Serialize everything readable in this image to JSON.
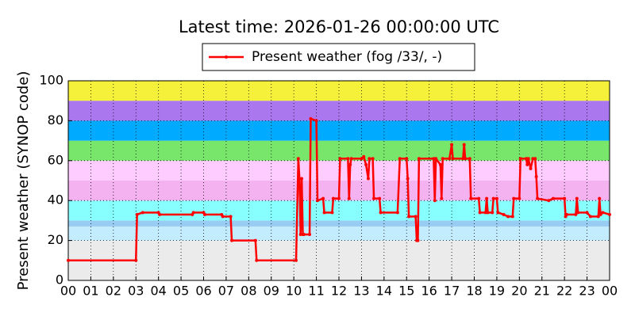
{
  "chart_data": {
    "type": "line",
    "title": "Latest time: 2026-01-26 00:00:00 UTC",
    "y_label": "Present weather (SYNOP code)",
    "xlim": [
      0,
      24
    ],
    "xticks": [
      {
        "value": 0,
        "label": "00"
      },
      {
        "value": 1,
        "label": "01"
      },
      {
        "value": 2,
        "label": "02"
      },
      {
        "value": 3,
        "label": "03"
      },
      {
        "value": 4,
        "label": "04"
      },
      {
        "value": 5,
        "label": "05"
      },
      {
        "value": 6,
        "label": "06"
      },
      {
        "value": 7,
        "label": "07"
      },
      {
        "value": 8,
        "label": "08"
      },
      {
        "value": 9,
        "label": "09"
      },
      {
        "value": 10,
        "label": "10"
      },
      {
        "value": 11,
        "label": "11"
      },
      {
        "value": 12,
        "label": "12"
      },
      {
        "value": 13,
        "label": "13"
      },
      {
        "value": 14,
        "label": "14"
      },
      {
        "value": 15,
        "label": "15"
      },
      {
        "value": 16,
        "label": "16"
      },
      {
        "value": 17,
        "label": "17"
      },
      {
        "value": 18,
        "label": "18"
      },
      {
        "value": 19,
        "label": "19"
      },
      {
        "value": 20,
        "label": "20"
      },
      {
        "value": 21,
        "label": "21"
      },
      {
        "value": 22,
        "label": "22"
      },
      {
        "value": 23,
        "label": "23"
      },
      {
        "value": 24,
        "label": "00"
      }
    ],
    "ylim": [
      0,
      100
    ],
    "yticks": [
      0,
      20,
      40,
      60,
      80,
      100
    ],
    "grid": true,
    "legend": "top-center",
    "bands": [
      {
        "from": 0,
        "to": 20,
        "color": "#ebebeb"
      },
      {
        "from": 20,
        "to": 27,
        "color": "#c4ecff"
      },
      {
        "from": 27,
        "to": 30,
        "color": "#99ccf2"
      },
      {
        "from": 30,
        "to": 40,
        "color": "#88ffff"
      },
      {
        "from": 40,
        "to": 50,
        "color": "#f4b2f0"
      },
      {
        "from": 50,
        "to": 60,
        "color": "#ffccff"
      },
      {
        "from": 60,
        "to": 70,
        "color": "#77e66b"
      },
      {
        "from": 70,
        "to": 80,
        "color": "#00aaff"
      },
      {
        "from": 80,
        "to": 90,
        "color": "#aa77ee"
      },
      {
        "from": 90,
        "to": 100,
        "color": "#f5f03a"
      }
    ],
    "series": [
      {
        "name": "Present weather (fog /33/, -)",
        "color": "#ff0000",
        "x": [
          0,
          3.0,
          3.05,
          3.3,
          4.0,
          4.05,
          5.5,
          5.55,
          6.0,
          6.05,
          6.8,
          6.85,
          7.2,
          7.25,
          8.3,
          8.35,
          10.1,
          10.2,
          10.25,
          10.3,
          10.35,
          10.4,
          10.45,
          10.7,
          10.75,
          11.0,
          11.05,
          11.3,
          11.35,
          11.7,
          11.75,
          12.0,
          12.05,
          12.4,
          12.45,
          12.5,
          12.55,
          13.0,
          13.1,
          13.2,
          13.3,
          13.35,
          13.5,
          13.55,
          13.8,
          13.85,
          14.6,
          14.7,
          15.0,
          15.05,
          15.1,
          15.4,
          15.45,
          15.5,
          15.55,
          16.2,
          16.25,
          16.3,
          16.5,
          16.55,
          16.6,
          16.9,
          17.0,
          17.05,
          17.5,
          17.55,
          17.6,
          17.8,
          17.85,
          18.2,
          18.25,
          18.5,
          18.55,
          18.6,
          18.8,
          18.85,
          19.0,
          19.05,
          19.3,
          19.5,
          19.7,
          19.75,
          20.0,
          20.05,
          20.3,
          20.35,
          20.4,
          20.5,
          20.6,
          20.7,
          20.75,
          20.8,
          21.3,
          21.5,
          22.0,
          22.05,
          22.1,
          22.5,
          22.55,
          22.6,
          23.0,
          23.15,
          23.5,
          23.55,
          23.6,
          23.7,
          24.0
        ],
        "values": [
          10,
          10,
          33,
          34,
          34,
          33,
          33,
          34,
          34,
          33,
          33,
          32,
          32,
          20,
          20,
          10,
          10,
          61,
          51,
          23,
          51,
          23,
          23,
          23,
          81,
          80,
          40,
          41,
          34,
          34,
          41,
          41,
          61,
          61,
          41,
          58,
          61,
          61,
          62,
          58,
          51,
          61,
          61,
          41,
          41,
          34,
          34,
          61,
          61,
          51,
          32,
          32,
          20,
          20,
          61,
          61,
          40,
          61,
          58,
          41,
          61,
          61,
          68,
          61,
          61,
          68,
          61,
          61,
          41,
          41,
          34,
          34,
          41,
          34,
          34,
          41,
          41,
          34,
          33,
          32,
          32,
          41,
          41,
          61,
          61,
          58,
          61,
          56,
          61,
          61,
          52,
          41,
          40,
          41,
          41,
          32,
          33,
          33,
          41,
          34,
          34,
          32,
          32,
          41,
          33,
          34,
          33
        ]
      }
    ]
  }
}
